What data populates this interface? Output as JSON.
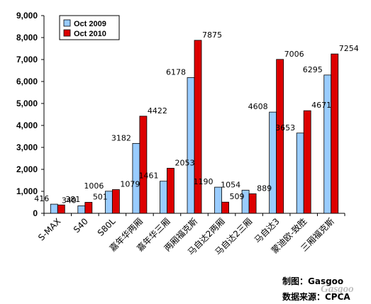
{
  "chart_data": {
    "type": "bar",
    "categories": [
      "S-MAX",
      "S40",
      "S80L",
      "嘉年华两厢",
      "嘉年华三厢",
      "两厢福克斯",
      "马自达2两厢",
      "马自达2三厢",
      "马自达3",
      "蒙迪欧-致胜",
      "三厢福克斯"
    ],
    "series": [
      {
        "name": "Oct 2009",
        "color": "#99ccff",
        "values": [
          416,
          340,
          1006,
          3182,
          1461,
          6178,
          1190,
          1054,
          4608,
          3653,
          6295
        ]
      },
      {
        "name": "Oct 2010",
        "color": "#dd0000",
        "values": [
          381,
          501,
          1079,
          4422,
          2053,
          7875,
          509,
          889,
          7006,
          4671,
          7254
        ]
      }
    ],
    "ylim": [
      0,
      9000
    ],
    "yticks": [
      "0",
      "1,000",
      "2,000",
      "3,000",
      "4,000",
      "5,000",
      "6,000",
      "7,000",
      "8,000",
      "9,000"
    ],
    "legend_position": "top-left",
    "grid": false
  },
  "credits": {
    "maker": "制图：Gasgoo",
    "source": "数据来源：CPCA"
  },
  "watermark": "Gasgoo"
}
